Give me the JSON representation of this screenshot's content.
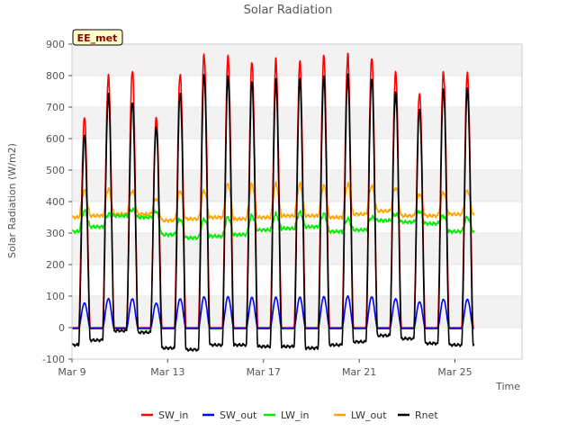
{
  "chart_data": {
    "type": "line",
    "title": "Solar Radiation",
    "xlabel": "Time",
    "ylabel": "Solar Radiation (W/m2)",
    "site_label": "EE_met",
    "ylim": [
      -100,
      900
    ],
    "xlim": [
      0,
      18.8
    ],
    "y_ticks": [
      -100,
      0,
      100,
      200,
      300,
      400,
      500,
      600,
      700,
      800,
      900
    ],
    "x_ticks": [
      {
        "day": 0,
        "label": "Mar 9"
      },
      {
        "day": 4,
        "label": "Mar 13"
      },
      {
        "day": 8,
        "label": "Mar 17"
      },
      {
        "day": 12,
        "label": "Mar 21"
      },
      {
        "day": 16,
        "label": "Mar 25"
      }
    ],
    "x_unit": "days since Mar 9",
    "grid": "horizontal alternating bands",
    "legend_position": "bottom",
    "day_window": {
      "sunrise": 0.28,
      "sunset": 0.76
    },
    "series": [
      {
        "name": "SW_in",
        "color": "#ff0000",
        "daily_peaks": [
          665,
          800,
          820,
          670,
          810,
          870,
          860,
          840,
          845,
          840,
          860,
          865,
          860,
          815,
          750,
          815,
          810
        ],
        "night": 0
      },
      {
        "name": "SW_out",
        "color": "#0000ff",
        "daily_peaks": [
          78,
          92,
          92,
          78,
          92,
          98,
          98,
          96,
          96,
          96,
          98,
          100,
          98,
          92,
          82,
          90,
          90
        ],
        "night": -3
      },
      {
        "name": "LW_in",
        "color": "#00ee00",
        "daily_peaks": [
          370,
          360,
          375,
          370,
          345,
          345,
          350,
          355,
          360,
          365,
          360,
          345,
          350,
          360,
          370,
          355,
          350
        ],
        "night": [
          305,
          320,
          355,
          350,
          295,
          285,
          290,
          295,
          310,
          315,
          320,
          305,
          310,
          340,
          335,
          330,
          305
        ]
      },
      {
        "name": "LW_out",
        "color": "#ffa500",
        "daily_peaks": [
          435,
          440,
          435,
          410,
          435,
          435,
          455,
          455,
          455,
          455,
          450,
          455,
          450,
          445,
          425,
          430,
          435
        ],
        "night": [
          350,
          355,
          360,
          360,
          340,
          345,
          350,
          345,
          350,
          355,
          355,
          350,
          360,
          370,
          355,
          355,
          360
        ]
      },
      {
        "name": "Rnet",
        "color": "#000000",
        "daily_peaks": [
          610,
          740,
          720,
          640,
          750,
          805,
          795,
          780,
          780,
          785,
          795,
          800,
          795,
          750,
          700,
          760,
          760
        ],
        "night": [
          -55,
          -40,
          -10,
          -15,
          -65,
          -70,
          -55,
          -55,
          -60,
          -60,
          -65,
          -55,
          -45,
          -25,
          -35,
          -50,
          -55
        ]
      }
    ]
  }
}
